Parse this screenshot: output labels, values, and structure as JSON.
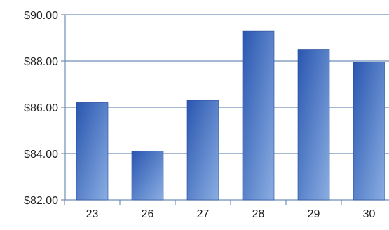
{
  "chart_data": {
    "type": "bar",
    "categories": [
      "23",
      "26",
      "27",
      "28",
      "29",
      "30"
    ],
    "values": [
      86.2,
      84.1,
      86.3,
      89.3,
      88.5,
      87.95
    ],
    "y_ticks": [
      "$82.00",
      "$84.00",
      "$86.00",
      "$88.00",
      "$90.00"
    ],
    "ylim": [
      82,
      90
    ],
    "title": "",
    "xlabel": "",
    "ylabel": "",
    "grid": true,
    "legend": "none",
    "colors": {
      "bar_dark": "#2a56b0",
      "bar_light": "#8aaee2",
      "gridline": "#6f8fb6",
      "axis": "#6f8fb6",
      "text": "#222222"
    }
  }
}
